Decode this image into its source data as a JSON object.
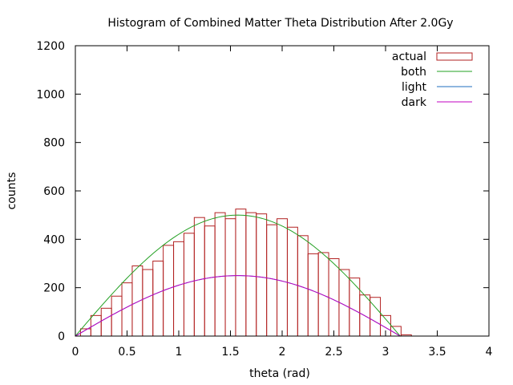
{
  "chart_data": {
    "type": "bar",
    "title": "Histogram of Combined Matter Theta Distribution After 2.0Gy",
    "xlabel": "theta (rad)",
    "ylabel": "counts",
    "xlim": [
      0,
      4
    ],
    "ylim": [
      0,
      1200
    ],
    "xticks": [
      0,
      0.5,
      1,
      1.5,
      2,
      2.5,
      3,
      3.5,
      4
    ],
    "yticks": [
      0,
      200,
      400,
      600,
      800,
      1000,
      1200
    ],
    "xtick_labels": [
      "0",
      "0.5",
      "1",
      "1.5",
      "2",
      "2.5",
      "3",
      "3.5",
      "4"
    ],
    "ytick_labels": [
      "0",
      "200",
      "400",
      "600",
      "800",
      "1000",
      "1200"
    ],
    "grid": false,
    "legend_position": "top-right",
    "histogram": {
      "name": "actual",
      "color": "#b22222",
      "bin_width": 0.1,
      "bin_starts": [
        0.05,
        0.15,
        0.25,
        0.35,
        0.45,
        0.55,
        0.65,
        0.75,
        0.85,
        0.95,
        1.05,
        1.15,
        1.25,
        1.35,
        1.45,
        1.55,
        1.65,
        1.75,
        1.85,
        1.95,
        2.05,
        2.15,
        2.25,
        2.35,
        2.45,
        2.55,
        2.65,
        2.75,
        2.85,
        2.95,
        3.05,
        3.15
      ],
      "counts": [
        30,
        85,
        115,
        165,
        220,
        290,
        275,
        310,
        375,
        390,
        425,
        490,
        455,
        510,
        485,
        525,
        510,
        505,
        460,
        485,
        450,
        415,
        340,
        345,
        320,
        275,
        240,
        170,
        160,
        85,
        40,
        5
      ]
    },
    "series": [
      {
        "name": "both",
        "color": "#22a022",
        "function": "500*sin(x)",
        "domain": [
          0,
          3.14159
        ]
      },
      {
        "name": "light",
        "color": "#1f6fbf",
        "function": "250*sin(x)",
        "domain": [
          0,
          3.14159
        ]
      },
      {
        "name": "dark",
        "color": "#c000c0",
        "function": "250*sin(x)",
        "domain": [
          0,
          3.14159
        ]
      }
    ]
  }
}
